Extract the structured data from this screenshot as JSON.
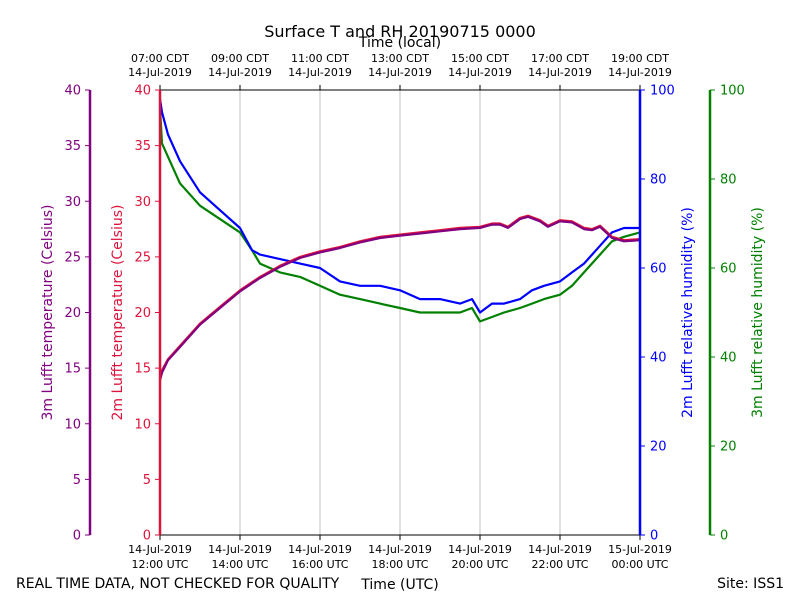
{
  "chart_data": {
    "type": "line",
    "title": "Surface T and RH 20190715 0000",
    "top_axis_label": "Time (local)",
    "bottom_axis_label": "Time (UTC)",
    "footer_left": "REAL TIME DATA, NOT CHECKED FOR QUALITY",
    "footer_right": "Site: ISS1",
    "x_range_hours_utc": [
      12,
      24
    ],
    "top_ticks": [
      {
        "hour": 12,
        "line1": "07:00 CDT",
        "line2": "14-Jul-2019"
      },
      {
        "hour": 14,
        "line1": "09:00 CDT",
        "line2": "14-Jul-2019"
      },
      {
        "hour": 16,
        "line1": "11:00 CDT",
        "line2": "14-Jul-2019"
      },
      {
        "hour": 18,
        "line1": "13:00 CDT",
        "line2": "14-Jul-2019"
      },
      {
        "hour": 20,
        "line1": "15:00 CDT",
        "line2": "14-Jul-2019"
      },
      {
        "hour": 22,
        "line1": "17:00 CDT",
        "line2": "14-Jul-2019"
      },
      {
        "hour": 24,
        "line1": "19:00 CDT",
        "line2": "14-Jul-2019"
      }
    ],
    "bottom_ticks": [
      {
        "hour": 12,
        "line1": "14-Jul-2019",
        "line2": "12:00 UTC"
      },
      {
        "hour": 14,
        "line1": "14-Jul-2019",
        "line2": "14:00 UTC"
      },
      {
        "hour": 16,
        "line1": "14-Jul-2019",
        "line2": "16:00 UTC"
      },
      {
        "hour": 18,
        "line1": "14-Jul-2019",
        "line2": "18:00 UTC"
      },
      {
        "hour": 20,
        "line1": "14-Jul-2019",
        "line2": "20:00 UTC"
      },
      {
        "hour": 22,
        "line1": "14-Jul-2019",
        "line2": "22:00 UTC"
      },
      {
        "hour": 24,
        "line1": "15-Jul-2019",
        "line2": "00:00 UTC"
      }
    ],
    "axes": [
      {
        "id": "t3",
        "label": "3m Lufft temperature (Celsius)",
        "color": "#800080",
        "range": [
          0,
          40
        ],
        "ticks": [
          0,
          5,
          10,
          15,
          20,
          25,
          30,
          35,
          40
        ]
      },
      {
        "id": "t2",
        "label": "2m Lufft temperature (Celsius)",
        "color": "#dc143c",
        "range": [
          0,
          40
        ],
        "ticks": [
          0,
          5,
          10,
          15,
          20,
          25,
          30,
          35,
          40
        ]
      },
      {
        "id": "rh2",
        "label": "2m Lufft relative humidity (%)",
        "color": "#0000ff",
        "range": [
          0,
          100
        ],
        "ticks": [
          0,
          20,
          40,
          60,
          80,
          100
        ]
      },
      {
        "id": "rh3",
        "label": "3m Lufft relative humidity (%)",
        "color": "#008000",
        "range": [
          0,
          100
        ],
        "ticks": [
          0,
          20,
          40,
          60,
          80,
          100
        ]
      }
    ],
    "series": [
      {
        "name": "2m Lufft temperature",
        "axis": "t2",
        "color": "#dc143c",
        "x": [
          12.0,
          12.05,
          12.2,
          12.5,
          13.0,
          13.5,
          14.0,
          14.5,
          15.0,
          15.5,
          16.0,
          16.5,
          17.0,
          17.5,
          18.0,
          18.5,
          19.0,
          19.5,
          20.0,
          20.3,
          20.5,
          20.7,
          21.0,
          21.2,
          21.5,
          21.7,
          22.0,
          22.3,
          22.6,
          22.8,
          23.0,
          23.3,
          23.6,
          24.0
        ],
        "values": [
          14.0,
          14.8,
          15.8,
          17.0,
          19.0,
          20.5,
          22.0,
          23.2,
          24.2,
          25.0,
          25.5,
          25.9,
          26.4,
          26.8,
          27.0,
          27.2,
          27.4,
          27.6,
          27.7,
          28.0,
          28.0,
          27.7,
          28.5,
          28.7,
          28.3,
          27.8,
          28.3,
          28.2,
          27.6,
          27.5,
          27.8,
          26.8,
          26.5,
          26.6
        ]
      },
      {
        "name": "3m Lufft temperature",
        "axis": "t3",
        "color": "#800080",
        "x": [
          12.0,
          12.05,
          12.2,
          12.5,
          13.0,
          13.5,
          14.0,
          14.5,
          15.0,
          15.5,
          16.0,
          16.5,
          17.0,
          17.5,
          18.0,
          18.5,
          19.0,
          19.5,
          20.0,
          20.3,
          20.5,
          20.7,
          21.0,
          21.2,
          21.5,
          21.7,
          22.0,
          22.3,
          22.6,
          22.8,
          23.0,
          23.3,
          23.6,
          24.0
        ],
        "values": [
          13.9,
          14.6,
          15.7,
          16.9,
          18.9,
          20.4,
          21.9,
          23.1,
          24.1,
          24.9,
          25.4,
          25.8,
          26.3,
          26.7,
          26.9,
          27.1,
          27.3,
          27.5,
          27.6,
          27.9,
          27.9,
          27.6,
          28.4,
          28.6,
          28.2,
          27.7,
          28.2,
          28.1,
          27.5,
          27.4,
          27.7,
          26.7,
          26.4,
          26.5
        ]
      },
      {
        "name": "2m Lufft relative humidity",
        "axis": "rh2",
        "color": "#0000ff",
        "x": [
          12.0,
          12.05,
          12.2,
          12.5,
          13.0,
          13.5,
          14.0,
          14.3,
          14.5,
          15.0,
          15.5,
          16.0,
          16.5,
          17.0,
          17.5,
          18.0,
          18.5,
          19.0,
          19.5,
          19.8,
          20.0,
          20.3,
          20.6,
          21.0,
          21.3,
          21.6,
          22.0,
          22.3,
          22.6,
          23.0,
          23.3,
          23.6,
          24.0
        ],
        "values": [
          98,
          95,
          90,
          84,
          77,
          73,
          69,
          64,
          63,
          62,
          61,
          60,
          57,
          56,
          56,
          55,
          53,
          53,
          52,
          53,
          50,
          52,
          52,
          53,
          55,
          56,
          57,
          59,
          61,
          65,
          68,
          69,
          69
        ]
      },
      {
        "name": "3m Lufft relative humidity",
        "axis": "rh3",
        "color": "#008000",
        "x": [
          12.0,
          12.05,
          12.2,
          12.5,
          13.0,
          13.5,
          14.0,
          14.3,
          14.5,
          15.0,
          15.5,
          16.0,
          16.5,
          17.0,
          17.5,
          18.0,
          18.5,
          19.0,
          19.5,
          19.8,
          20.0,
          20.3,
          20.6,
          21.0,
          21.3,
          21.6,
          22.0,
          22.3,
          22.6,
          23.0,
          23.3,
          23.6,
          24.0
        ],
        "values": [
          96,
          88,
          85,
          79,
          74,
          71,
          68,
          64,
          61,
          59,
          58,
          56,
          54,
          53,
          52,
          51,
          50,
          50,
          50,
          51,
          48,
          49,
          50,
          51,
          52,
          53,
          54,
          56,
          59,
          63,
          66,
          67,
          68
        ]
      }
    ]
  }
}
